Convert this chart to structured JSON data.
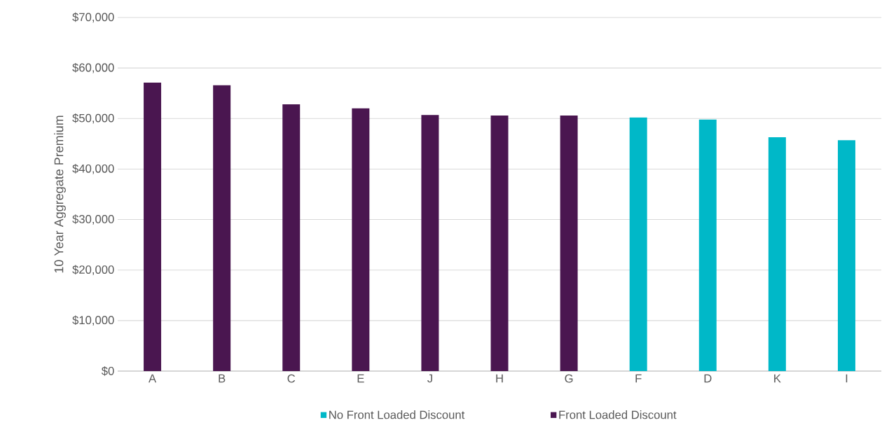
{
  "chart_data": {
    "type": "bar",
    "ylabel": "10 Year Aggregate Premium",
    "categories": [
      "A",
      "B",
      "C",
      "E",
      "J",
      "H",
      "G",
      "F",
      "D",
      "K",
      "I"
    ],
    "series": [
      {
        "name": "No Front Loaded Discount",
        "color": "#00b8c8",
        "values": [
          null,
          null,
          null,
          null,
          null,
          null,
          null,
          50200,
          49800,
          46300,
          45700
        ]
      },
      {
        "name": "Front Loaded Discount",
        "color": "#4a1650",
        "values": [
          57100,
          56600,
          52800,
          52000,
          50700,
          50600,
          50600,
          null,
          null,
          null,
          null
        ]
      }
    ],
    "ylim": [
      0,
      70000
    ],
    "yticks": [
      {
        "value": 0,
        "label": "$0"
      },
      {
        "value": 10000,
        "label": "$10,000"
      },
      {
        "value": 20000,
        "label": "$20,000"
      },
      {
        "value": 30000,
        "label": "$30,000"
      },
      {
        "value": 40000,
        "label": "$40,000"
      },
      {
        "value": 50000,
        "label": "$50,000"
      },
      {
        "value": 60000,
        "label": "$60,000"
      },
      {
        "value": 70000,
        "label": "$70,000"
      }
    ],
    "grid": "y",
    "legend": "bottom"
  }
}
